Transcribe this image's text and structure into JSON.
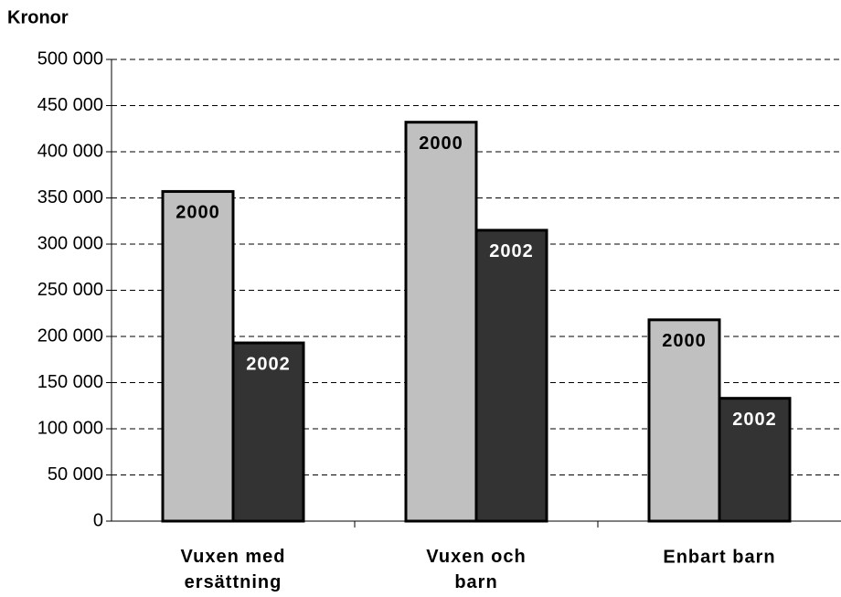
{
  "chart_data": {
    "type": "bar",
    "y_label": "Kronor",
    "categories": [
      "Vuxen med ersättning",
      "Vuxen och barn",
      "Enbart barn"
    ],
    "series": [
      {
        "name": "2000",
        "color": "#c0c0c0",
        "values": [
          357000,
          432000,
          218000
        ]
      },
      {
        "name": "2002",
        "color": "#333333",
        "values": [
          193000,
          315000,
          133000
        ]
      }
    ],
    "ylim": [
      0,
      500000
    ],
    "yticks": [
      0,
      {
        "value": 50000,
        "label": "50 000"
      },
      {
        "value": 100000,
        "label": "100 000"
      },
      {
        "value": 150000,
        "label": "150 000"
      },
      {
        "value": 200000,
        "label": "200 000"
      },
      {
        "value": 250000,
        "label": "250 000"
      },
      {
        "value": 300000,
        "label": "300 000"
      },
      {
        "value": 350000,
        "label": "350 000"
      },
      {
        "value": 400000,
        "label": "400 000"
      },
      {
        "value": 450000,
        "label": "450 000"
      },
      {
        "value": 500000,
        "label": "500 000"
      }
    ],
    "grid": true
  }
}
